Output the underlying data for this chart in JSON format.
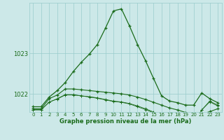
{
  "title": "Graphe pression niveau de la mer (hPa)",
  "bg_color": "#cce8e8",
  "grid_color": "#99cccc",
  "line_color": "#1a6b1a",
  "xlim": [
    -0.5,
    23.5
  ],
  "ylim": [
    1021.55,
    1024.25
  ],
  "yticks": [
    1022,
    1023
  ],
  "xticks": [
    0,
    1,
    2,
    3,
    4,
    5,
    6,
    7,
    8,
    9,
    10,
    11,
    12,
    13,
    14,
    15,
    16,
    17,
    18,
    19,
    20,
    21,
    22,
    23
  ],
  "line1_x": [
    0,
    1,
    2,
    3,
    4,
    5,
    6,
    7,
    8,
    9,
    10,
    11,
    12,
    13,
    14,
    15,
    16,
    17,
    18,
    19,
    20,
    21,
    22,
    23
  ],
  "line1_y": [
    1021.68,
    1021.68,
    1021.92,
    1022.08,
    1022.28,
    1022.55,
    1022.78,
    1022.98,
    1023.22,
    1023.62,
    1024.05,
    1024.1,
    1023.68,
    1023.22,
    1022.82,
    1022.38,
    1021.95,
    1021.82,
    1021.78,
    1021.72,
    1021.72,
    1022.02,
    1021.88,
    1021.78
  ],
  "line2_x": [
    0,
    1,
    2,
    3,
    4,
    5,
    6,
    7,
    8,
    9,
    10,
    11,
    12,
    13,
    14,
    15,
    16,
    17,
    18,
    19,
    20,
    21,
    22,
    23
  ],
  "line2_y": [
    1021.63,
    1021.63,
    1021.88,
    1021.97,
    1022.12,
    1022.12,
    1022.1,
    1022.08,
    1022.06,
    1022.04,
    1022.02,
    1022.0,
    1021.97,
    1021.92,
    1021.86,
    1021.79,
    1021.72,
    1021.65,
    1021.6,
    1021.54,
    1021.5,
    1021.5,
    1021.56,
    1021.63
  ],
  "line3_x": [
    0,
    1,
    2,
    3,
    4,
    5,
    6,
    7,
    8,
    9,
    10,
    11,
    12,
    13,
    14,
    15,
    16,
    17,
    18,
    19,
    20,
    21,
    22,
    23
  ],
  "line3_y": [
    1021.6,
    1021.6,
    1021.8,
    1021.87,
    1021.97,
    1021.97,
    1021.95,
    1021.92,
    1021.89,
    1021.85,
    1021.81,
    1021.79,
    1021.75,
    1021.68,
    1021.61,
    1021.53,
    1021.45,
    1021.37,
    1021.33,
    1021.29,
    1021.27,
    1021.6,
    1021.82,
    1021.72
  ],
  "line4_x": [
    0,
    1,
    2,
    3,
    4,
    5,
    6,
    7,
    8,
    9,
    10,
    11,
    12,
    13,
    14,
    15,
    16,
    17,
    18,
    19,
    20,
    21,
    22,
    23
  ],
  "line4_y": [
    1021.61,
    1021.61,
    1021.79,
    1021.88,
    1021.98,
    1021.98,
    1021.95,
    1021.93,
    1021.9,
    1021.86,
    1021.82,
    1021.8,
    1021.76,
    1021.7,
    1021.63,
    1021.55,
    1021.47,
    1021.39,
    1021.35,
    1021.31,
    1021.29,
    1021.6,
    1021.8,
    1021.7
  ]
}
